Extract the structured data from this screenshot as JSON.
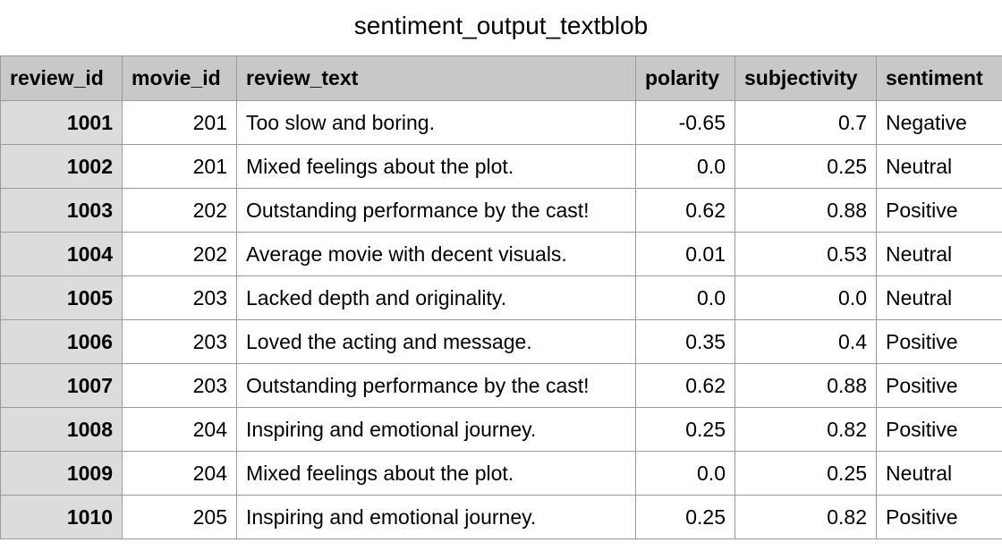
{
  "title": "sentiment_output_textblob",
  "columns": [
    "review_id",
    "movie_id",
    "review_text",
    "polarity",
    "subjectivity",
    "sentiment"
  ],
  "rows": [
    {
      "review_id": "1001",
      "movie_id": "201",
      "review_text": "Too slow and boring.",
      "polarity": "-0.65",
      "subjectivity": "0.7",
      "sentiment": "Negative"
    },
    {
      "review_id": "1002",
      "movie_id": "201",
      "review_text": "Mixed feelings about the plot.",
      "polarity": "0.0",
      "subjectivity": "0.25",
      "sentiment": "Neutral"
    },
    {
      "review_id": "1003",
      "movie_id": "202",
      "review_text": "Outstanding performance by the cast!",
      "polarity": "0.62",
      "subjectivity": "0.88",
      "sentiment": "Positive"
    },
    {
      "review_id": "1004",
      "movie_id": "202",
      "review_text": "Average movie with decent visuals.",
      "polarity": "0.01",
      "subjectivity": "0.53",
      "sentiment": "Neutral"
    },
    {
      "review_id": "1005",
      "movie_id": "203",
      "review_text": "Lacked depth and originality.",
      "polarity": "0.0",
      "subjectivity": "0.0",
      "sentiment": "Neutral"
    },
    {
      "review_id": "1006",
      "movie_id": "203",
      "review_text": "Loved the acting and message.",
      "polarity": "0.35",
      "subjectivity": "0.4",
      "sentiment": "Positive"
    },
    {
      "review_id": "1007",
      "movie_id": "203",
      "review_text": "Outstanding performance by the cast!",
      "polarity": "0.62",
      "subjectivity": "0.88",
      "sentiment": "Positive"
    },
    {
      "review_id": "1008",
      "movie_id": "204",
      "review_text": "Inspiring and emotional journey.",
      "polarity": "0.25",
      "subjectivity": "0.82",
      "sentiment": "Positive"
    },
    {
      "review_id": "1009",
      "movie_id": "204",
      "review_text": "Mixed feelings about the plot.",
      "polarity": "0.0",
      "subjectivity": "0.25",
      "sentiment": "Neutral"
    },
    {
      "review_id": "1010",
      "movie_id": "205",
      "review_text": "Inspiring and emotional journey.",
      "polarity": "0.25",
      "subjectivity": "0.82",
      "sentiment": "Positive"
    }
  ]
}
